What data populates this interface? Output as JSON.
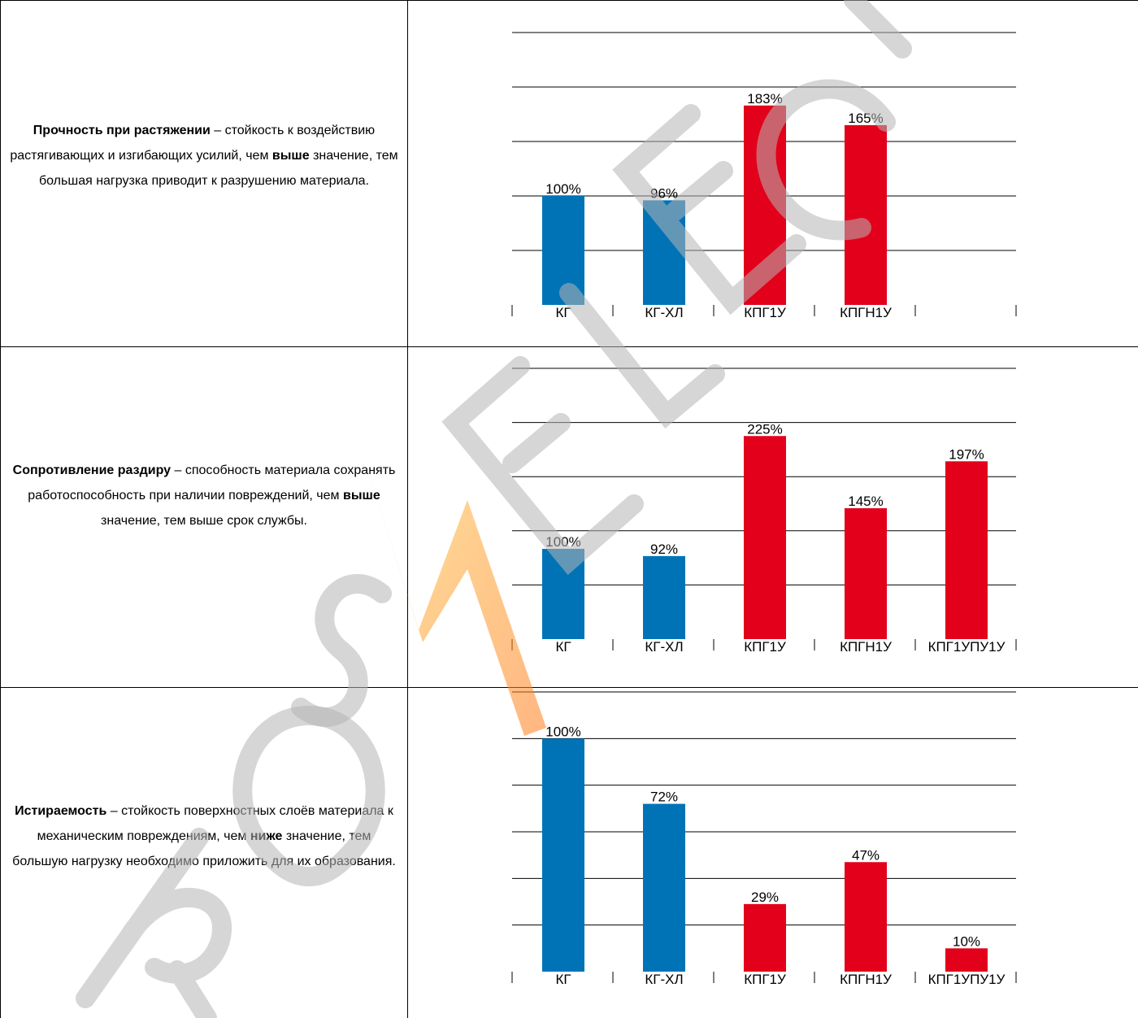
{
  "rows": [
    {
      "desc": {
        "term": "Прочность при растяжении",
        "p1": " – стойкость к воздействию растягивающих и изгибающих усилий, чем ",
        "emph": "выше",
        "p2": " значение, тем большая нагрузка приводит к разрушению материала."
      }
    },
    {
      "desc": {
        "term": "Сопротивление раздиру",
        "p1": " – способность материала сохранять работоспособность при наличии повреждений, чем ",
        "emph": "выше",
        "p2": " значение, тем выше срок службы."
      }
    },
    {
      "desc": {
        "term": "Истираемость",
        "p1": " – стойкость поверхностных слоёв материала к механическим повреждениям, чем ",
        "emph": "ниже",
        "p2": " значение, тем большую нагрузку необходимо приложить для их образования."
      }
    }
  ],
  "colors": {
    "blue": "#0073b7",
    "red": "#e2001a"
  },
  "watermark": {
    "text": "ROSELECT",
    "logo": "lightning-bolt"
  },
  "chart_data": [
    {
      "type": "bar",
      "categories": [
        "КГ",
        "КГ-ХЛ",
        "КПГ1У",
        "КПГН1У",
        ""
      ],
      "values": [
        100,
        96,
        183,
        165,
        null
      ],
      "labels": [
        "100%",
        "96%",
        "183%",
        "165%",
        ""
      ],
      "colors": [
        "blue",
        "blue",
        "red",
        "red",
        "red"
      ],
      "ylim": [
        0,
        250
      ],
      "grid": true,
      "xlabel": "",
      "ylabel": "",
      "title": ""
    },
    {
      "type": "bar",
      "categories": [
        "КГ",
        "КГ-ХЛ",
        "КПГ1У",
        "КПГН1У",
        "КПГ1УПУ1У"
      ],
      "values": [
        100,
        92,
        225,
        145,
        197
      ],
      "labels": [
        "100%",
        "92%",
        "225%",
        "145%",
        "197%"
      ],
      "colors": [
        "blue",
        "blue",
        "red",
        "red",
        "red"
      ],
      "ylim": [
        0,
        300
      ],
      "grid": true,
      "xlabel": "",
      "ylabel": "",
      "title": ""
    },
    {
      "type": "bar",
      "categories": [
        "КГ",
        "КГ-ХЛ",
        "КПГ1У",
        "КПГН1У",
        "КПГ1УПУ1У"
      ],
      "values": [
        100,
        72,
        29,
        47,
        10
      ],
      "labels": [
        "100%",
        "72%",
        "29%",
        "47%",
        "10%"
      ],
      "colors": [
        "blue",
        "blue",
        "red",
        "red",
        "red"
      ],
      "ylim": [
        0,
        120
      ],
      "grid": true,
      "xlabel": "",
      "ylabel": "",
      "title": ""
    }
  ]
}
